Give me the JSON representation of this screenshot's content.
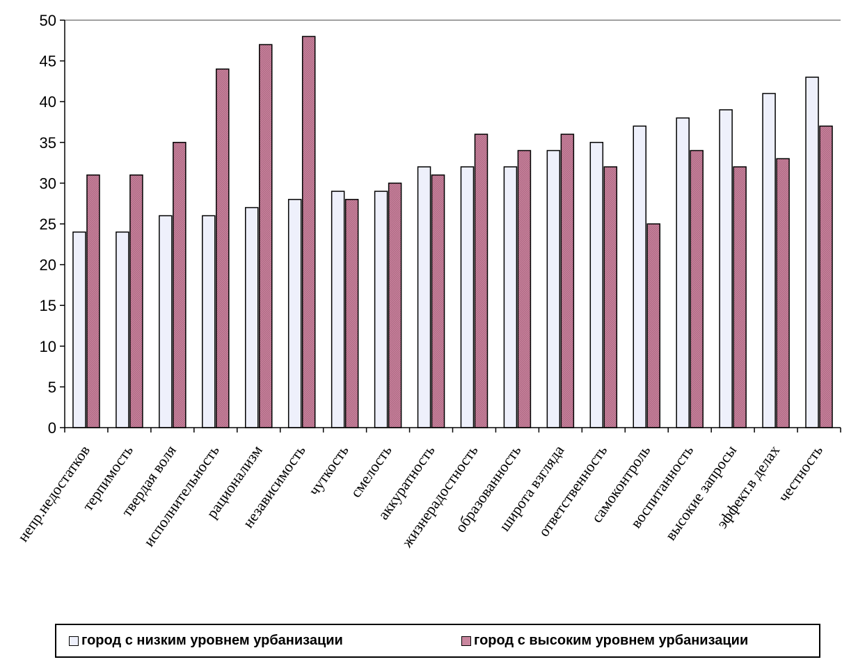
{
  "colors": {
    "series1_fill": "#eef0fb",
    "series2_fill": "#c9869e",
    "axis": "#808080",
    "bar_stroke": "#000000"
  },
  "chart_data": {
    "type": "bar",
    "categories": [
      "непр.недостатков",
      "терпимость",
      "твердая воля",
      "исполнительность",
      "рационализм",
      "независимость",
      "чуткость",
      "смелость",
      "аккуратность",
      "жизнерадостность",
      "образованность",
      "широта взгляда",
      "ответственность",
      "самоконтроль",
      "воспитанность",
      "высокие запросы",
      "эффект.в делах",
      "честность"
    ],
    "series": [
      {
        "name": "город с низким уровнем урбанизации",
        "values": [
          24,
          24,
          26,
          26,
          27,
          28,
          29,
          29,
          32,
          32,
          32,
          34,
          35,
          37,
          38,
          39,
          41,
          43
        ]
      },
      {
        "name": "город с высоким уровнем урбанизации",
        "values": [
          31,
          31,
          35,
          44,
          47,
          48,
          28,
          30,
          31,
          36,
          34,
          36,
          32,
          25,
          34,
          32,
          33,
          37
        ]
      }
    ],
    "title": "",
    "xlabel": "",
    "ylabel": "",
    "ylim": [
      0,
      50
    ],
    "yticks": [
      "0",
      "5",
      "10",
      "15",
      "20",
      "25",
      "30",
      "35",
      "40",
      "45",
      "50"
    ],
    "legend_position": "bottom",
    "grid": false
  }
}
